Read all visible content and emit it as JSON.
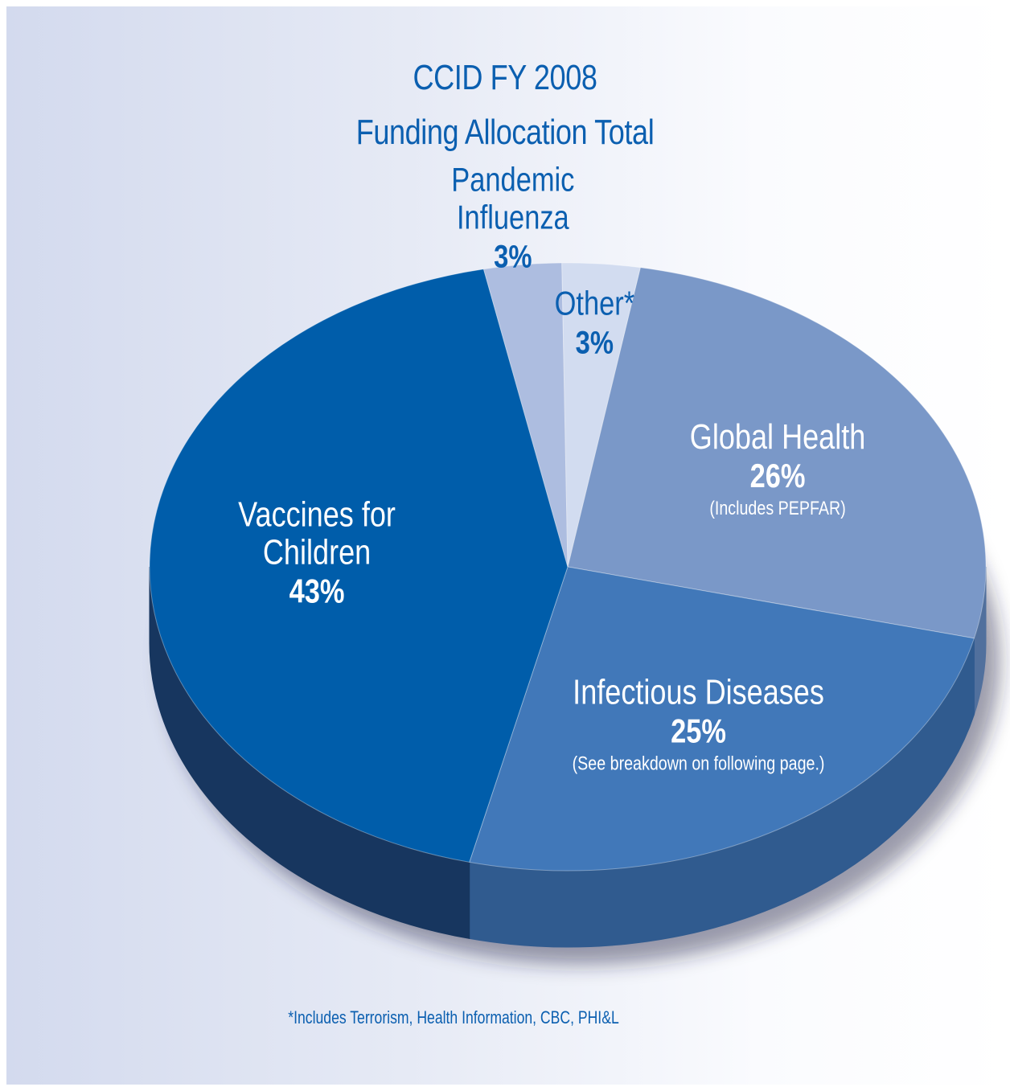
{
  "chart_data": {
    "type": "pie",
    "title_lines": [
      "CCID FY 2008",
      "Funding Allocation Total"
    ],
    "slices": [
      {
        "name_lines": [
          "Global Health"
        ],
        "value": 26,
        "value_label": "26%",
        "note": "(Includes PEPFAR)",
        "color": "#7a98c8",
        "side_color": "#51709d"
      },
      {
        "name_lines": [
          "Infectious Diseases"
        ],
        "value": 25,
        "value_label": "25%",
        "note": "(See  breakdown on following page.)",
        "color": "#4178b9",
        "side_color": "#305b8f"
      },
      {
        "name_lines": [
          "Vaccines for",
          "Children"
        ],
        "value": 43,
        "value_label": "43%",
        "note": "",
        "color": "#005daa",
        "side_color": "#17365f"
      },
      {
        "name_lines": [
          "Pandemic",
          "Influenza"
        ],
        "value": 3,
        "value_label": "3%",
        "note": "",
        "color": "#adbde0",
        "side_color": "#7d8fb8"
      },
      {
        "name_lines": [
          "Other*"
        ],
        "value": 3,
        "value_label": "3%",
        "note": "",
        "color": "#d2dcf0",
        "side_color": "#9aa9c9"
      }
    ],
    "footnote": "*Includes Terrorism, Health Information, CBC, PHI&L",
    "text_color": "#0b5fb0",
    "inside_text_color": "#ffffff"
  }
}
